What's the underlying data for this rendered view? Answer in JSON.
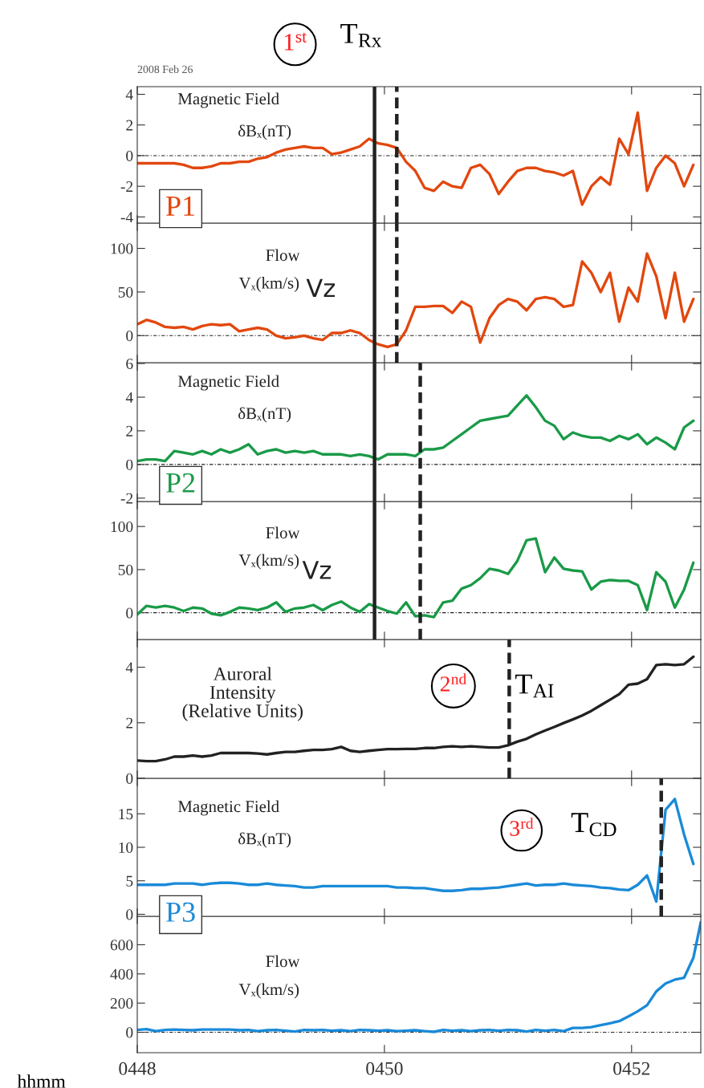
{
  "chart_data": [
    {
      "type": "line",
      "annotations": [
        "2008 Feb 26",
        "1$^{st}$",
        "Magnetic Field",
        "δBₓ(nT)",
        "P1"
      ],
      "x": [
        448,
        448.075,
        448.15,
        448.225,
        448.3,
        448.375,
        448.45,
        448.525,
        448.6,
        448.675,
        448.75,
        448.825,
        448.9,
        448.975,
        449.05,
        449.125,
        449.2,
        449.275,
        449.35,
        449.425,
        449.5,
        449.575,
        449.65,
        449.725,
        449.8,
        449.875,
        449.95,
        450.025,
        450.1,
        450.175,
        450.25,
        450.325,
        450.4,
        450.475,
        450.55,
        450.625,
        450.7,
        450.775,
        450.85,
        450.925,
        451,
        451.075,
        451.15,
        451.225,
        451.3,
        451.375,
        451.45,
        451.525,
        451.6,
        451.675,
        451.75,
        451.825,
        451.9,
        451.975,
        452.05,
        452.125,
        452.2,
        452.275,
        452.35,
        452.425,
        452.5
      ],
      "series": [
        {
          "color": "#e2470e",
          "values": [
            -0.5,
            -0.5,
            -0.5,
            -0.5,
            -0.5,
            -0.6,
            -0.8,
            -0.8,
            -0.7,
            -0.5,
            -0.5,
            -0.4,
            -0.4,
            -0.2,
            -0.1,
            0.2,
            0.4,
            0.5,
            0.6,
            0.5,
            0.5,
            0.1,
            0.2,
            0.4,
            0.6,
            1.1,
            0.8,
            0.7,
            0.5,
            -0.4,
            -1.0,
            -2.1,
            -2.3,
            -1.7,
            -2.0,
            -2.1,
            -0.8,
            -0.6,
            -1.2,
            -2.5,
            -1.7,
            -1.0,
            -0.8,
            -0.8,
            -1.0,
            -1.1,
            -1.3,
            -1.0,
            -3.2,
            -2.0,
            -1.4,
            -1.9,
            1.1,
            0.1,
            2.8,
            -2.3,
            -0.8,
            0.0,
            -0.5,
            -2.0,
            -0.6
          ]
        }
      ],
      "xlim": [
        448,
        452.56
      ],
      "ylim": [
        -4.4,
        4.5
      ],
      "yticks": [
        -4,
        -2,
        0,
        2,
        4
      ],
      "xticks": [
        {
          "value": 448,
          "label": null
        },
        {
          "value": 450,
          "label": null
        },
        {
          "value": 452,
          "label": null
        }
      ],
      "tick_labels": "y",
      "ref_lines": [
        {
          "axis": "y",
          "value": 0,
          "color": "#222222",
          "line_style": "dotted"
        },
        {
          "axis": "x",
          "value": 449.92,
          "color": "#222222",
          "line_style": "solid",
          "label": "T$_{Rx}$"
        },
        {
          "axis": "x",
          "value": 450.1,
          "color": "#222222",
          "line_style": "dashed"
        }
      ]
    },
    {
      "type": "line",
      "annotations": [
        "Flow",
        "Vₓ(km/s)",
        "Vz"
      ],
      "x": [
        448,
        448.075,
        448.15,
        448.225,
        448.3,
        448.375,
        448.45,
        448.525,
        448.6,
        448.675,
        448.75,
        448.825,
        448.9,
        448.975,
        449.05,
        449.125,
        449.2,
        449.275,
        449.35,
        449.425,
        449.5,
        449.575,
        449.65,
        449.725,
        449.8,
        449.875,
        449.95,
        450.025,
        450.1,
        450.175,
        450.25,
        450.325,
        450.4,
        450.475,
        450.55,
        450.625,
        450.7,
        450.775,
        450.85,
        450.925,
        451,
        451.075,
        451.15,
        451.225,
        451.3,
        451.375,
        451.45,
        451.525,
        451.6,
        451.675,
        451.75,
        451.825,
        451.9,
        451.975,
        452.05,
        452.125,
        452.2,
        452.275,
        452.35,
        452.425,
        452.5
      ],
      "series": [
        {
          "color": "#e2470e",
          "values": [
            13,
            18,
            15,
            10,
            9,
            10,
            7,
            11,
            13,
            12,
            13,
            5,
            7,
            9,
            7,
            0,
            -3,
            -2,
            0,
            -3,
            -5,
            3,
            3,
            6,
            3,
            -5,
            -10,
            -13,
            -10,
            6,
            33,
            33,
            34,
            34,
            26,
            39,
            33,
            -8,
            20,
            35,
            42,
            39,
            29,
            42,
            44,
            42,
            33,
            35,
            85,
            72,
            50,
            72,
            16,
            55,
            39,
            94,
            68,
            20,
            72,
            16,
            42
          ]
        }
      ],
      "xlim": [
        448,
        452.56
      ],
      "ylim": [
        -31,
        129
      ],
      "yticks": [
        0,
        50,
        100
      ],
      "xticks": [
        {
          "value": 448,
          "label": null
        },
        {
          "value": 450,
          "label": null
        },
        {
          "value": 452,
          "label": null
        }
      ],
      "tick_labels": "y",
      "ref_lines": [
        {
          "axis": "y",
          "value": 0,
          "color": "#222222",
          "line_style": "dotted"
        },
        {
          "axis": "x",
          "value": 449.92,
          "color": "#222222",
          "line_style": "solid"
        },
        {
          "axis": "x",
          "value": 450.1,
          "color": "#222222",
          "line_style": "dashed"
        }
      ]
    },
    {
      "type": "line",
      "annotations": [
        "Magnetic Field",
        "δBₓ(nT)",
        "P2"
      ],
      "x": [
        448,
        448.075,
        448.15,
        448.225,
        448.3,
        448.375,
        448.45,
        448.525,
        448.6,
        448.675,
        448.75,
        448.825,
        448.9,
        448.975,
        449.05,
        449.125,
        449.2,
        449.275,
        449.35,
        449.425,
        449.5,
        449.575,
        449.65,
        449.725,
        449.8,
        449.875,
        449.95,
        450.025,
        450.1,
        450.175,
        450.25,
        450.325,
        450.4,
        450.475,
        450.55,
        450.625,
        450.7,
        450.775,
        450.85,
        450.925,
        451,
        451.075,
        451.15,
        451.225,
        451.3,
        451.375,
        451.45,
        451.525,
        451.6,
        451.675,
        451.75,
        451.825,
        451.9,
        451.975,
        452.05,
        452.125,
        452.2,
        452.275,
        452.35,
        452.425,
        452.5
      ],
      "series": [
        {
          "color": "#1a9a48",
          "values": [
            0.2,
            0.3,
            0.3,
            0.2,
            0.8,
            0.7,
            0.6,
            0.8,
            0.6,
            0.9,
            0.7,
            0.9,
            1.2,
            0.6,
            0.8,
            0.9,
            0.7,
            0.8,
            0.7,
            0.8,
            0.6,
            0.6,
            0.6,
            0.5,
            0.6,
            0.5,
            0.3,
            0.6,
            0.6,
            0.6,
            0.5,
            0.9,
            0.9,
            1.0,
            1.4,
            1.8,
            2.2,
            2.6,
            2.7,
            2.8,
            2.9,
            3.5,
            4.1,
            3.4,
            2.6,
            2.3,
            1.5,
            1.9,
            1.7,
            1.6,
            1.6,
            1.4,
            1.7,
            1.5,
            1.8,
            1.2,
            1.6,
            1.3,
            0.9,
            2.2,
            2.6
          ]
        }
      ],
      "xlim": [
        448,
        452.56
      ],
      "ylim": [
        -2.2,
        6.05
      ],
      "yticks": [
        -2,
        0,
        2,
        4,
        6
      ],
      "xticks": [
        {
          "value": 448,
          "label": null
        },
        {
          "value": 450,
          "label": null
        },
        {
          "value": 452,
          "label": null
        }
      ],
      "tick_labels": "y",
      "ref_lines": [
        {
          "axis": "y",
          "value": 0,
          "color": "#222222",
          "line_style": "dotted"
        },
        {
          "axis": "x",
          "value": 449.92,
          "color": "#222222",
          "line_style": "solid"
        },
        {
          "axis": "x",
          "value": 450.29,
          "color": "#222222",
          "line_style": "dashed"
        }
      ]
    },
    {
      "type": "line",
      "annotations": [
        "Flow",
        "Vₓ(km/s)",
        "Vz"
      ],
      "x": [
        448,
        448.075,
        448.15,
        448.225,
        448.3,
        448.375,
        448.45,
        448.525,
        448.6,
        448.675,
        448.75,
        448.825,
        448.9,
        448.975,
        449.05,
        449.125,
        449.2,
        449.275,
        449.35,
        449.425,
        449.5,
        449.575,
        449.65,
        449.725,
        449.8,
        449.875,
        449.95,
        450.025,
        450.1,
        450.175,
        450.25,
        450.325,
        450.4,
        450.475,
        450.55,
        450.625,
        450.7,
        450.775,
        450.85,
        450.925,
        451,
        451.075,
        451.15,
        451.225,
        451.3,
        451.375,
        451.45,
        451.525,
        451.6,
        451.675,
        451.75,
        451.825,
        451.9,
        451.975,
        452.05,
        452.125,
        452.2,
        452.275,
        452.35,
        452.425,
        452.5
      ],
      "series": [
        {
          "color": "#1a9a48",
          "values": [
            -2,
            8,
            6,
            8,
            6,
            2,
            6,
            5,
            -1,
            -3,
            1,
            6,
            5,
            3,
            6,
            12,
            1,
            5,
            6,
            9,
            3,
            9,
            13,
            6,
            1,
            10,
            6,
            2,
            -1,
            12,
            -4,
            -3,
            -5,
            12,
            14,
            28,
            32,
            40,
            51,
            49,
            45,
            60,
            84,
            86,
            47,
            64,
            51,
            49,
            48,
            27,
            36,
            38,
            37,
            37,
            32,
            3,
            47,
            36,
            6,
            27,
            58
          ]
        }
      ],
      "xlim": [
        448,
        452.56
      ],
      "ylim": [
        -31,
        129
      ],
      "yticks": [
        0,
        50,
        100
      ],
      "xticks": [
        {
          "value": 448,
          "label": null
        },
        {
          "value": 450,
          "label": null
        },
        {
          "value": 452,
          "label": null
        }
      ],
      "tick_labels": "y",
      "ref_lines": [
        {
          "axis": "y",
          "value": 0,
          "color": "#222222",
          "line_style": "dotted"
        },
        {
          "axis": "x",
          "value": 449.92,
          "color": "#222222",
          "line_style": "solid"
        },
        {
          "axis": "x",
          "value": 450.29,
          "color": "#222222",
          "line_style": "dashed"
        }
      ]
    },
    {
      "type": "line",
      "annotations": [
        "Auroral\nIntensity\n(Relative Units)",
        "2$^{nd}$"
      ],
      "x": [
        448,
        448.075,
        448.15,
        448.225,
        448.3,
        448.375,
        448.45,
        448.525,
        448.6,
        448.675,
        448.75,
        448.825,
        448.9,
        448.975,
        449.05,
        449.125,
        449.2,
        449.275,
        449.35,
        449.425,
        449.5,
        449.575,
        449.65,
        449.725,
        449.8,
        449.875,
        449.95,
        450.025,
        450.1,
        450.175,
        450.25,
        450.325,
        450.4,
        450.475,
        450.55,
        450.625,
        450.7,
        450.775,
        450.85,
        450.925,
        451,
        451.075,
        451.15,
        451.225,
        451.3,
        451.375,
        451.45,
        451.525,
        451.6,
        451.675,
        451.75,
        451.825,
        451.9,
        451.975,
        452.05,
        452.125,
        452.2,
        452.275,
        452.35,
        452.425,
        452.5
      ],
      "series": [
        {
          "color": "#222222",
          "values": [
            0.64,
            0.62,
            0.62,
            0.68,
            0.78,
            0.78,
            0.82,
            0.78,
            0.82,
            0.91,
            0.91,
            0.91,
            0.91,
            0.89,
            0.86,
            0.91,
            0.95,
            0.95,
            0.99,
            1.02,
            1.02,
            1.05,
            1.13,
            0.99,
            0.95,
            0.99,
            1.02,
            1.05,
            1.05,
            1.06,
            1.06,
            1.09,
            1.09,
            1.13,
            1.15,
            1.13,
            1.15,
            1.13,
            1.11,
            1.11,
            1.19,
            1.32,
            1.42,
            1.58,
            1.72,
            1.85,
            1.99,
            2.12,
            2.26,
            2.43,
            2.63,
            2.83,
            3.03,
            3.37,
            3.41,
            3.57,
            4.08,
            4.11,
            4.08,
            4.11,
            4.38
          ]
        }
      ],
      "xlim": [
        448,
        452.56
      ],
      "ylim": [
        0,
        5
      ],
      "yticks": [
        0,
        2,
        4
      ],
      "xticks": [
        {
          "value": 448,
          "label": null
        },
        {
          "value": 450,
          "label": null
        },
        {
          "value": 452,
          "label": null
        }
      ],
      "tick_labels": "y",
      "ref_lines": [
        {
          "axis": "x",
          "value": 451.01,
          "color": "#222222",
          "line_style": "dashed",
          "label": "T$_{AI}$"
        }
      ]
    },
    {
      "type": "line",
      "annotations": [
        "Magnetic Field",
        "δBₓ(nT)",
        "3$^{rd}$",
        "P3"
      ],
      "x": [
        448,
        448.075,
        448.15,
        448.225,
        448.3,
        448.375,
        448.45,
        448.525,
        448.6,
        448.675,
        448.75,
        448.825,
        448.9,
        448.975,
        449.05,
        449.125,
        449.2,
        449.275,
        449.35,
        449.425,
        449.5,
        449.575,
        449.65,
        449.725,
        449.8,
        449.875,
        449.95,
        450.025,
        450.1,
        450.175,
        450.25,
        450.325,
        450.4,
        450.475,
        450.55,
        450.625,
        450.7,
        450.775,
        450.85,
        450.925,
        451,
        451.075,
        451.15,
        451.225,
        451.3,
        451.375,
        451.45,
        451.525,
        451.6,
        451.675,
        451.75,
        451.825,
        451.9,
        451.975,
        452.05,
        452.125,
        452.2,
        452.275,
        452.35,
        452.425,
        452.5
      ],
      "series": [
        {
          "color": "#1a8ad8",
          "values": [
            4.4,
            4.4,
            4.4,
            4.4,
            4.6,
            4.6,
            4.6,
            4.4,
            4.6,
            4.7,
            4.7,
            4.6,
            4.4,
            4.4,
            4.6,
            4.4,
            4.3,
            4.2,
            4.0,
            4.0,
            4.2,
            4.2,
            4.2,
            4.2,
            4.2,
            4.2,
            4.2,
            4.2,
            4.0,
            4.0,
            3.9,
            3.9,
            3.7,
            3.5,
            3.5,
            3.6,
            3.8,
            3.8,
            3.9,
            4.0,
            4.2,
            4.4,
            4.6,
            4.3,
            4.4,
            4.4,
            4.6,
            4.4,
            4.3,
            4.2,
            4.0,
            3.9,
            3.7,
            3.6,
            4.4,
            5.8,
            1.9,
            15.6,
            17.2,
            11.9,
            7.5
          ]
        }
      ],
      "xlim": [
        448,
        452.56
      ],
      "ylim": [
        -0.3,
        20.3
      ],
      "yticks": [
        0,
        5,
        10,
        15
      ],
      "xticks": [
        {
          "value": 448,
          "label": null
        },
        {
          "value": 450,
          "label": null
        },
        {
          "value": 452,
          "label": null
        }
      ],
      "tick_labels": "y",
      "ref_lines": [
        {
          "axis": "x",
          "value": 452.24,
          "color": "#222222",
          "line_style": "dashed",
          "label": "T$_{CD}$"
        }
      ]
    },
    {
      "type": "line",
      "annotations": [
        "Flow",
        "Vₓ(km/s)"
      ],
      "xlabel": "hhmm",
      "x": [
        448,
        448.075,
        448.15,
        448.225,
        448.3,
        448.375,
        448.45,
        448.525,
        448.6,
        448.675,
        448.75,
        448.825,
        448.9,
        448.975,
        449.05,
        449.125,
        449.2,
        449.275,
        449.35,
        449.425,
        449.5,
        449.575,
        449.65,
        449.725,
        449.8,
        449.875,
        449.95,
        450.025,
        450.1,
        450.175,
        450.25,
        450.325,
        450.4,
        450.475,
        450.55,
        450.625,
        450.7,
        450.775,
        450.85,
        450.925,
        451,
        451.075,
        451.15,
        451.225,
        451.3,
        451.375,
        451.45,
        451.525,
        451.6,
        451.675,
        451.75,
        451.825,
        451.9,
        451.975,
        452.05,
        452.125,
        452.2,
        452.275,
        452.35,
        452.425,
        452.5,
        452.56
      ],
      "series": [
        {
          "color": "#1a8ad8",
          "values": [
            16,
            22,
            8,
            16,
            19,
            16,
            14,
            19,
            19,
            19,
            19,
            14,
            16,
            8,
            14,
            16,
            11,
            5,
            16,
            14,
            16,
            11,
            14,
            8,
            16,
            14,
            11,
            14,
            8,
            11,
            14,
            8,
            3,
            16,
            11,
            14,
            8,
            14,
            16,
            11,
            16,
            14,
            5,
            16,
            11,
            16,
            8,
            30,
            30,
            35,
            49,
            62,
            76,
            109,
            144,
            185,
            280,
            334,
            361,
            374,
            510,
            754
          ]
        }
      ],
      "xlim": [
        448,
        452.56
      ],
      "ylim": [
        -140,
        795
      ],
      "yticks": [
        0,
        200,
        400,
        600
      ],
      "xticks": [
        {
          "value": 448,
          "label": "0448"
        },
        {
          "value": 450,
          "label": "0450"
        },
        {
          "value": 452,
          "label": "0452"
        }
      ],
      "ref_lines": [
        {
          "axis": "y",
          "value": 0,
          "color": "#222222",
          "line_style": "dotted"
        }
      ]
    }
  ]
}
